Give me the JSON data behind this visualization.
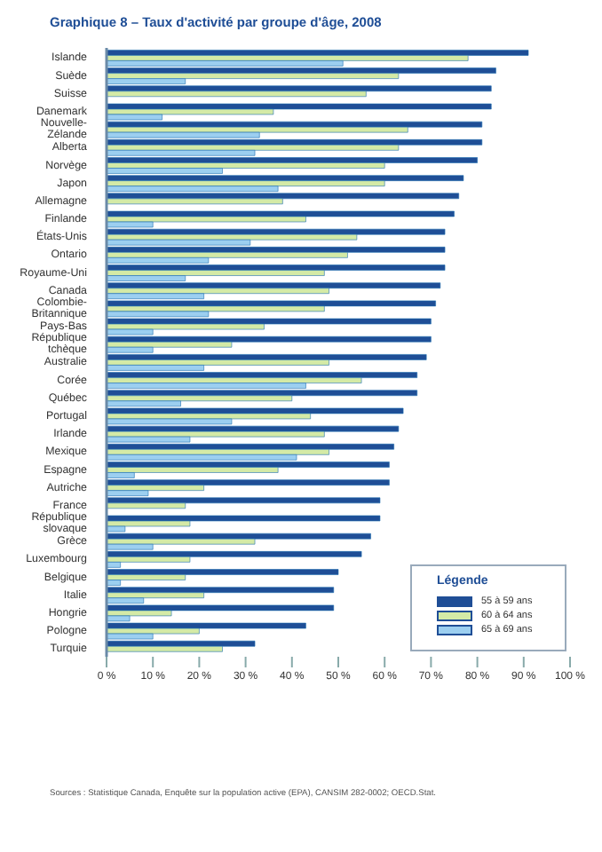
{
  "chart_data": {
    "type": "bar",
    "orientation": "horizontal",
    "title": "Graphique 8 – Taux d'activité par groupe d'âge, 2008",
    "categories": [
      "Islande",
      "Suède",
      "Suisse",
      "Danemark",
      "Nouvelle-Zélande",
      "Alberta",
      "Norvège",
      "Japon",
      "Allemagne",
      "Finlande",
      "États-Unis",
      "Ontario",
      "Royaume-Uni",
      "Canada",
      "Colombie-Britannique",
      "Pays-Bas",
      "République tchèque",
      "Australie",
      "Corée",
      "Québec",
      "Portugal",
      "Irlande",
      "Mexique",
      "Espagne",
      "Autriche",
      "France",
      "République slovaque",
      "Grèce",
      "Luxembourg",
      "Belgique",
      "Italie",
      "Hongrie",
      "Pologne",
      "Turquie"
    ],
    "series": [
      {
        "name": "55 à 59 ans",
        "color": "#1f4e96",
        "values": [
          91,
          84,
          83,
          83,
          81,
          81,
          80,
          77,
          76,
          75,
          73,
          73,
          73,
          72,
          71,
          70,
          70,
          69,
          67,
          67,
          64,
          63,
          62,
          61,
          61,
          59,
          59,
          57,
          55,
          50,
          49,
          49,
          43,
          32
        ]
      },
      {
        "name": "60 à 64 ans",
        "color": "#d4eaa6",
        "values": [
          78,
          63,
          56,
          36,
          65,
          63,
          60,
          60,
          38,
          43,
          54,
          52,
          47,
          48,
          47,
          34,
          27,
          48,
          55,
          40,
          44,
          47,
          48,
          37,
          21,
          17,
          18,
          32,
          18,
          17,
          21,
          14,
          20,
          25
        ]
      },
      {
        "name": "65 à 69 ans",
        "color": "#9ccff0",
        "values": [
          51,
          17,
          null,
          12,
          33,
          32,
          25,
          37,
          null,
          10,
          31,
          22,
          17,
          21,
          22,
          10,
          10,
          21,
          43,
          16,
          27,
          18,
          41,
          6,
          9,
          null,
          4,
          10,
          3,
          3,
          8,
          5,
          10,
          null
        ]
      }
    ],
    "xlim": [
      0,
      100
    ],
    "xticks": [
      {
        "value": 0,
        "label": "0 %"
      },
      {
        "value": 10,
        "label": "10 %"
      },
      {
        "value": 20,
        "label": "20 %"
      },
      {
        "value": 30,
        "label": "30 %"
      },
      {
        "value": 40,
        "label": "40 %"
      },
      {
        "value": 50,
        "label": "50 %"
      },
      {
        "value": 60,
        "label": "60 %"
      },
      {
        "value": 70,
        "label": "70 %"
      },
      {
        "value": 80,
        "label": "80 %"
      },
      {
        "value": 90,
        "label": "90 %"
      },
      {
        "value": 100,
        "label": "100 %"
      }
    ],
    "legend": "bottom right",
    "legend_title": "Légende",
    "annotations": [
      "Sources : Statistique Canada, Enquête sur la population active (EPA), CANSIM 282-0002; OECD.Stat."
    ]
  }
}
